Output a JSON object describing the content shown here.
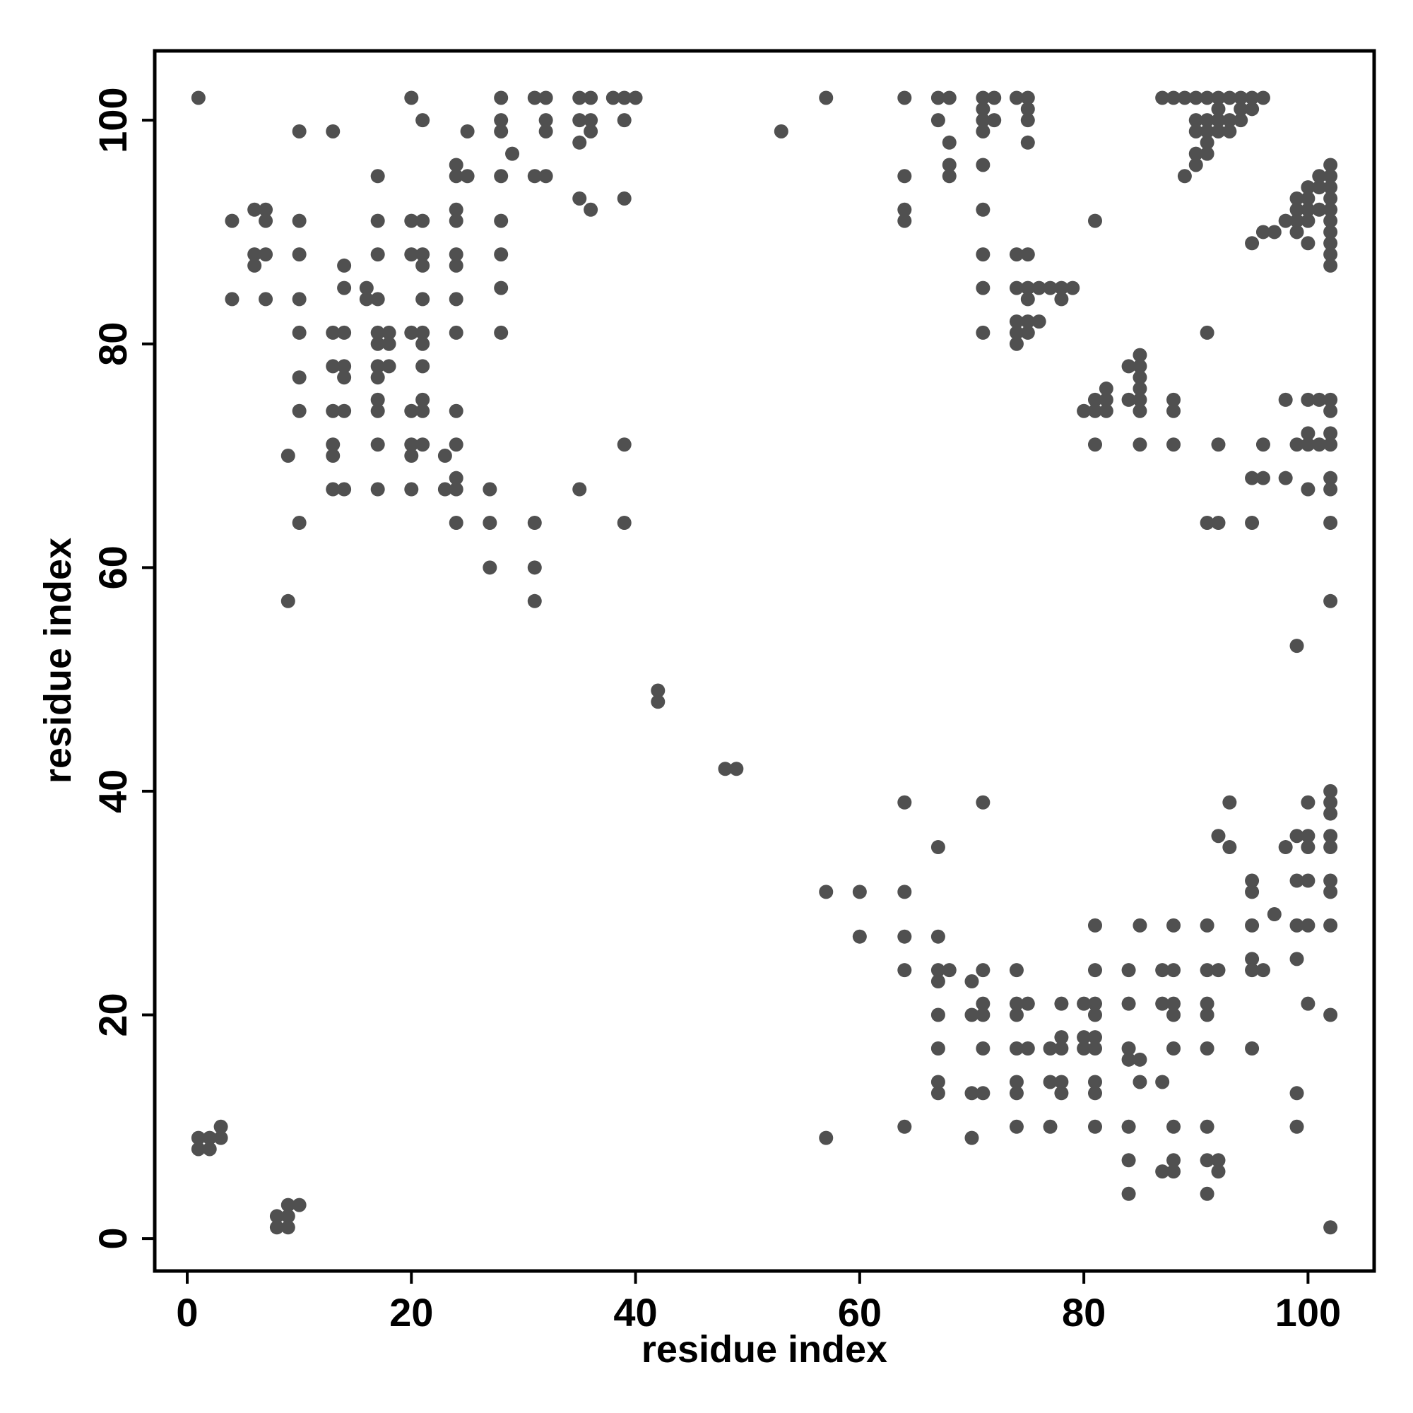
{
  "chart_data": {
    "type": "scatter",
    "x_label": "residue index",
    "y_label": "residue index",
    "color": "#505050",
    "xlim": [
      -2.9,
      105.9
    ],
    "ylim": [
      -2.9,
      106.2
    ],
    "xticks": [
      0,
      20,
      40,
      60,
      80,
      100
    ],
    "yticks": [
      0,
      20,
      40,
      60,
      80,
      100
    ],
    "x": [
      1,
      2,
      1,
      2,
      3,
      3,
      8,
      9,
      8,
      9,
      9,
      10,
      42,
      42,
      48,
      49,
      1,
      20,
      28,
      31,
      32,
      35,
      36,
      38,
      39,
      40,
      21,
      28,
      32,
      35,
      36,
      39,
      10,
      13,
      25,
      28,
      32,
      36,
      53,
      29,
      35,
      24,
      24,
      25,
      28,
      31,
      32,
      17,
      35,
      36,
      39,
      6,
      7,
      4,
      7,
      10,
      17,
      20,
      21,
      24,
      24,
      28,
      6,
      7,
      6,
      10,
      14,
      17,
      20,
      21,
      21,
      24,
      24,
      28,
      16,
      14,
      28,
      4,
      7,
      10,
      16,
      17,
      21,
      24,
      10,
      13,
      14,
      17,
      18,
      20,
      21,
      24,
      28,
      17,
      18,
      21,
      13,
      14,
      17,
      18,
      21,
      10,
      14,
      17,
      17,
      21,
      10,
      13,
      14,
      17,
      20,
      21,
      24,
      13,
      17,
      20,
      21,
      24,
      9,
      13,
      20,
      23,
      13,
      14,
      17,
      20,
      23,
      24,
      27,
      35,
      24,
      10,
      24,
      27,
      31,
      39,
      27,
      31,
      9,
      31,
      39,
      57,
      64,
      67,
      68,
      71,
      72,
      74,
      75,
      67,
      71,
      72,
      75,
      71,
      75,
      71,
      68,
      75,
      64,
      68,
      68,
      71,
      64,
      64,
      71,
      71,
      74,
      75,
      71,
      74,
      75,
      76,
      77,
      78,
      79,
      75,
      78,
      71,
      74,
      75,
      76,
      74,
      75,
      74,
      81,
      87,
      88,
      89,
      90,
      91,
      92,
      93,
      94,
      95,
      96,
      90,
      91,
      92,
      93,
      94,
      92,
      94,
      95,
      91,
      92,
      93,
      90,
      91,
      90,
      91,
      90,
      89,
      102,
      101,
      102,
      100,
      101,
      102,
      99,
      100,
      102,
      99,
      100,
      101,
      102,
      98,
      99,
      100,
      102,
      96,
      97,
      99,
      102,
      95,
      100,
      102,
      102,
      102,
      91,
      84,
      85,
      85,
      85,
      85,
      82,
      81,
      82,
      84,
      85,
      80,
      81,
      82,
      85,
      81,
      85,
      88,
      88,
      88,
      92,
      96,
      98,
      100,
      101,
      102,
      102,
      100,
      102,
      99,
      100,
      101,
      102,
      95,
      96,
      98,
      102,
      100,
      102,
      91,
      92,
      95,
      102,
      102,
      99,
      57,
      60,
      64,
      60,
      64,
      67,
      64,
      71,
      67,
      64,
      67,
      68,
      67,
      70,
      71,
      67,
      70,
      71,
      71,
      74,
      75,
      74,
      74,
      67,
      71,
      74,
      75,
      77,
      78,
      78,
      80,
      81,
      80,
      81,
      67,
      67,
      70,
      71,
      74,
      74,
      77,
      78,
      78,
      78,
      80,
      81,
      81,
      81,
      84,
      84,
      81,
      81,
      81,
      85,
      88,
      91,
      87,
      88,
      87,
      88,
      88,
      91,
      92,
      91,
      91,
      84,
      84,
      85,
      85,
      88,
      91,
      87,
      57,
      64,
      70,
      74,
      77,
      81,
      84,
      88,
      91,
      99,
      84,
      88,
      87,
      88,
      91,
      92,
      92,
      84,
      91,
      102,
      95,
      95,
      95,
      96,
      95,
      95,
      97,
      93,
      92,
      93,
      95,
      98,
      99,
      100,
      100,
      102,
      102,
      99,
      100,
      102,
      102,
      99,
      100,
      102,
      99,
      100,
      102,
      99,
      100,
      102,
      102,
      102
    ],
    "values": [
      9,
      9,
      8,
      8,
      10,
      9,
      2,
      2,
      1,
      1,
      3,
      3,
      49,
      48,
      42,
      42,
      102,
      102,
      102,
      102,
      102,
      102,
      102,
      102,
      102,
      102,
      100,
      100,
      100,
      100,
      100,
      100,
      99,
      99,
      99,
      99,
      99,
      99,
      99,
      97,
      98,
      96,
      95,
      95,
      95,
      95,
      95,
      95,
      93,
      92,
      93,
      92,
      92,
      91,
      91,
      91,
      91,
      91,
      91,
      92,
      91,
      91,
      88,
      88,
      87,
      88,
      87,
      88,
      88,
      88,
      87,
      88,
      87,
      88,
      85,
      85,
      85,
      84,
      84,
      84,
      84,
      84,
      84,
      84,
      81,
      81,
      81,
      81,
      81,
      81,
      81,
      81,
      81,
      80,
      80,
      80,
      78,
      78,
      78,
      78,
      78,
      77,
      77,
      77,
      75,
      75,
      74,
      74,
      74,
      74,
      74,
      74,
      74,
      71,
      71,
      71,
      71,
      71,
      70,
      70,
      70,
      70,
      67,
      67,
      67,
      67,
      67,
      67,
      67,
      67,
      68,
      64,
      64,
      64,
      64,
      64,
      60,
      60,
      57,
      57,
      71,
      102,
      102,
      102,
      102,
      102,
      102,
      102,
      102,
      100,
      100,
      100,
      100,
      101,
      101,
      99,
      98,
      98,
      95,
      96,
      95,
      96,
      92,
      91,
      92,
      88,
      88,
      88,
      85,
      85,
      85,
      85,
      85,
      85,
      85,
      84,
      84,
      81,
      82,
      82,
      82,
      81,
      81,
      80,
      91,
      102,
      102,
      102,
      102,
      102,
      102,
      102,
      102,
      102,
      102,
      100,
      100,
      100,
      100,
      100,
      101,
      101,
      101,
      99,
      99,
      99,
      99,
      98,
      97,
      97,
      96,
      95,
      96,
      95,
      95,
      94,
      94,
      94,
      93,
      93,
      93,
      92,
      92,
      92,
      92,
      91,
      91,
      91,
      91,
      90,
      90,
      90,
      90,
      89,
      89,
      89,
      88,
      87,
      81,
      78,
      79,
      78,
      77,
      76,
      76,
      75,
      75,
      75,
      75,
      74,
      74,
      74,
      74,
      71,
      71,
      75,
      74,
      71,
      71,
      71,
      75,
      75,
      75,
      75,
      74,
      72,
      72,
      71,
      71,
      71,
      71,
      68,
      68,
      68,
      68,
      67,
      67,
      64,
      64,
      64,
      64,
      57,
      53,
      31,
      31,
      31,
      27,
      27,
      27,
      39,
      39,
      35,
      24,
      24,
      24,
      23,
      23,
      24,
      20,
      20,
      20,
      21,
      21,
      21,
      20,
      24,
      17,
      17,
      17,
      17,
      17,
      17,
      18,
      18,
      18,
      17,
      17,
      14,
      13,
      13,
      13,
      14,
      13,
      14,
      14,
      13,
      21,
      21,
      21,
      20,
      24,
      24,
      21,
      14,
      13,
      28,
      28,
      28,
      28,
      24,
      24,
      21,
      21,
      20,
      24,
      24,
      21,
      20,
      17,
      16,
      16,
      14,
      17,
      17,
      14,
      9,
      10,
      9,
      10,
      10,
      10,
      10,
      10,
      10,
      10,
      7,
      7,
      6,
      6,
      7,
      7,
      6,
      4,
      4,
      1,
      28,
      25,
      24,
      24,
      32,
      31,
      29,
      35,
      36,
      39,
      17,
      35,
      36,
      36,
      35,
      36,
      35,
      32,
      32,
      32,
      31,
      28,
      28,
      28,
      25,
      21,
      20,
      13,
      39,
      40,
      39,
      38
    ]
  }
}
